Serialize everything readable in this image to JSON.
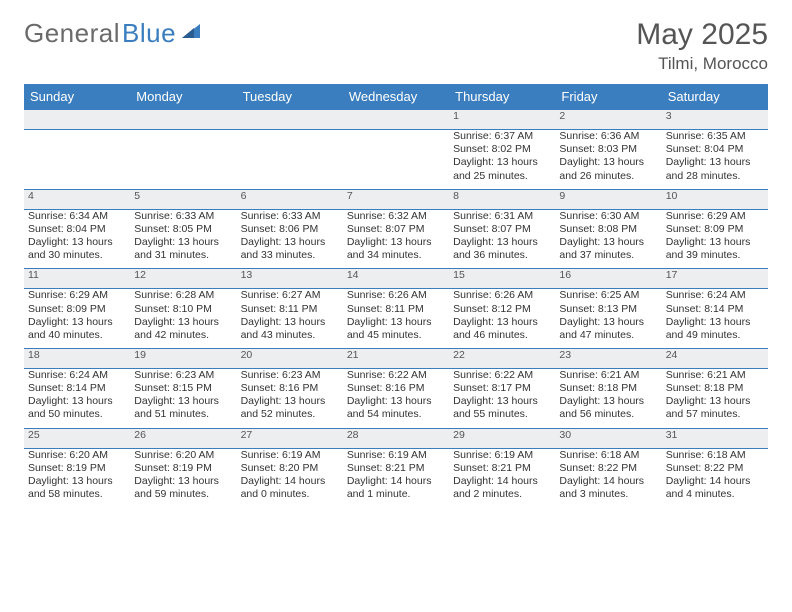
{
  "logo": {
    "text1": "General",
    "text2": "Blue",
    "accent": "#3a7ebf",
    "grey": "#6a6a6a"
  },
  "title": "May 2025",
  "location": "Tilmi, Morocco",
  "header_bg": "#3a7ebf",
  "daynum_bg": "#eceeef",
  "border_color": "#3a7ebf",
  "days_of_week": [
    "Sunday",
    "Monday",
    "Tuesday",
    "Wednesday",
    "Thursday",
    "Friday",
    "Saturday"
  ],
  "weeks": [
    [
      null,
      null,
      null,
      null,
      {
        "n": "1",
        "sunrise": "Sunrise: 6:37 AM",
        "sunset": "Sunset: 8:02 PM",
        "day1": "Daylight: 13 hours",
        "day2": "and 25 minutes."
      },
      {
        "n": "2",
        "sunrise": "Sunrise: 6:36 AM",
        "sunset": "Sunset: 8:03 PM",
        "day1": "Daylight: 13 hours",
        "day2": "and 26 minutes."
      },
      {
        "n": "3",
        "sunrise": "Sunrise: 6:35 AM",
        "sunset": "Sunset: 8:04 PM",
        "day1": "Daylight: 13 hours",
        "day2": "and 28 minutes."
      }
    ],
    [
      {
        "n": "4",
        "sunrise": "Sunrise: 6:34 AM",
        "sunset": "Sunset: 8:04 PM",
        "day1": "Daylight: 13 hours",
        "day2": "and 30 minutes."
      },
      {
        "n": "5",
        "sunrise": "Sunrise: 6:33 AM",
        "sunset": "Sunset: 8:05 PM",
        "day1": "Daylight: 13 hours",
        "day2": "and 31 minutes."
      },
      {
        "n": "6",
        "sunrise": "Sunrise: 6:33 AM",
        "sunset": "Sunset: 8:06 PM",
        "day1": "Daylight: 13 hours",
        "day2": "and 33 minutes."
      },
      {
        "n": "7",
        "sunrise": "Sunrise: 6:32 AM",
        "sunset": "Sunset: 8:07 PM",
        "day1": "Daylight: 13 hours",
        "day2": "and 34 minutes."
      },
      {
        "n": "8",
        "sunrise": "Sunrise: 6:31 AM",
        "sunset": "Sunset: 8:07 PM",
        "day1": "Daylight: 13 hours",
        "day2": "and 36 minutes."
      },
      {
        "n": "9",
        "sunrise": "Sunrise: 6:30 AM",
        "sunset": "Sunset: 8:08 PM",
        "day1": "Daylight: 13 hours",
        "day2": "and 37 minutes."
      },
      {
        "n": "10",
        "sunrise": "Sunrise: 6:29 AM",
        "sunset": "Sunset: 8:09 PM",
        "day1": "Daylight: 13 hours",
        "day2": "and 39 minutes."
      }
    ],
    [
      {
        "n": "11",
        "sunrise": "Sunrise: 6:29 AM",
        "sunset": "Sunset: 8:09 PM",
        "day1": "Daylight: 13 hours",
        "day2": "and 40 minutes."
      },
      {
        "n": "12",
        "sunrise": "Sunrise: 6:28 AM",
        "sunset": "Sunset: 8:10 PM",
        "day1": "Daylight: 13 hours",
        "day2": "and 42 minutes."
      },
      {
        "n": "13",
        "sunrise": "Sunrise: 6:27 AM",
        "sunset": "Sunset: 8:11 PM",
        "day1": "Daylight: 13 hours",
        "day2": "and 43 minutes."
      },
      {
        "n": "14",
        "sunrise": "Sunrise: 6:26 AM",
        "sunset": "Sunset: 8:11 PM",
        "day1": "Daylight: 13 hours",
        "day2": "and 45 minutes."
      },
      {
        "n": "15",
        "sunrise": "Sunrise: 6:26 AM",
        "sunset": "Sunset: 8:12 PM",
        "day1": "Daylight: 13 hours",
        "day2": "and 46 minutes."
      },
      {
        "n": "16",
        "sunrise": "Sunrise: 6:25 AM",
        "sunset": "Sunset: 8:13 PM",
        "day1": "Daylight: 13 hours",
        "day2": "and 47 minutes."
      },
      {
        "n": "17",
        "sunrise": "Sunrise: 6:24 AM",
        "sunset": "Sunset: 8:14 PM",
        "day1": "Daylight: 13 hours",
        "day2": "and 49 minutes."
      }
    ],
    [
      {
        "n": "18",
        "sunrise": "Sunrise: 6:24 AM",
        "sunset": "Sunset: 8:14 PM",
        "day1": "Daylight: 13 hours",
        "day2": "and 50 minutes."
      },
      {
        "n": "19",
        "sunrise": "Sunrise: 6:23 AM",
        "sunset": "Sunset: 8:15 PM",
        "day1": "Daylight: 13 hours",
        "day2": "and 51 minutes."
      },
      {
        "n": "20",
        "sunrise": "Sunrise: 6:23 AM",
        "sunset": "Sunset: 8:16 PM",
        "day1": "Daylight: 13 hours",
        "day2": "and 52 minutes."
      },
      {
        "n": "21",
        "sunrise": "Sunrise: 6:22 AM",
        "sunset": "Sunset: 8:16 PM",
        "day1": "Daylight: 13 hours",
        "day2": "and 54 minutes."
      },
      {
        "n": "22",
        "sunrise": "Sunrise: 6:22 AM",
        "sunset": "Sunset: 8:17 PM",
        "day1": "Daylight: 13 hours",
        "day2": "and 55 minutes."
      },
      {
        "n": "23",
        "sunrise": "Sunrise: 6:21 AM",
        "sunset": "Sunset: 8:18 PM",
        "day1": "Daylight: 13 hours",
        "day2": "and 56 minutes."
      },
      {
        "n": "24",
        "sunrise": "Sunrise: 6:21 AM",
        "sunset": "Sunset: 8:18 PM",
        "day1": "Daylight: 13 hours",
        "day2": "and 57 minutes."
      }
    ],
    [
      {
        "n": "25",
        "sunrise": "Sunrise: 6:20 AM",
        "sunset": "Sunset: 8:19 PM",
        "day1": "Daylight: 13 hours",
        "day2": "and 58 minutes."
      },
      {
        "n": "26",
        "sunrise": "Sunrise: 6:20 AM",
        "sunset": "Sunset: 8:19 PM",
        "day1": "Daylight: 13 hours",
        "day2": "and 59 minutes."
      },
      {
        "n": "27",
        "sunrise": "Sunrise: 6:19 AM",
        "sunset": "Sunset: 8:20 PM",
        "day1": "Daylight: 14 hours",
        "day2": "and 0 minutes."
      },
      {
        "n": "28",
        "sunrise": "Sunrise: 6:19 AM",
        "sunset": "Sunset: 8:21 PM",
        "day1": "Daylight: 14 hours",
        "day2": "and 1 minute."
      },
      {
        "n": "29",
        "sunrise": "Sunrise: 6:19 AM",
        "sunset": "Sunset: 8:21 PM",
        "day1": "Daylight: 14 hours",
        "day2": "and 2 minutes."
      },
      {
        "n": "30",
        "sunrise": "Sunrise: 6:18 AM",
        "sunset": "Sunset: 8:22 PM",
        "day1": "Daylight: 14 hours",
        "day2": "and 3 minutes."
      },
      {
        "n": "31",
        "sunrise": "Sunrise: 6:18 AM",
        "sunset": "Sunset: 8:22 PM",
        "day1": "Daylight: 14 hours",
        "day2": "and 4 minutes."
      }
    ]
  ]
}
